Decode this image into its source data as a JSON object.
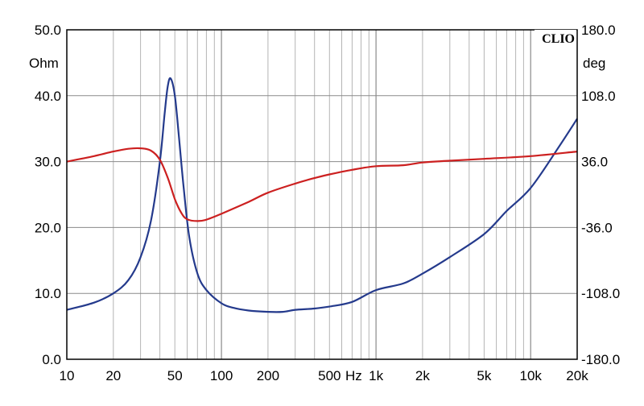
{
  "chart_data": {
    "type": "line",
    "brand": "CLIO",
    "x_axis": {
      "scale": "log",
      "range": [
        10,
        20000
      ],
      "tick_values": [
        10,
        20,
        50,
        100,
        200,
        500,
        1000,
        2000,
        5000,
        10000,
        20000
      ],
      "tick_labels": [
        "10",
        "20",
        "50",
        "100",
        "200",
        "500",
        "1k",
        "2k",
        "5k",
        "10k",
        "20k"
      ],
      "unit_label": "Hz"
    },
    "y_left": {
      "unit_label": "Ohm",
      "range": [
        0,
        50
      ],
      "tick_values": [
        0,
        10,
        20,
        30,
        40,
        50
      ],
      "tick_labels": [
        "0.0",
        "10.0",
        "20.0",
        "30.0",
        "40.0",
        "50.0"
      ]
    },
    "y_right": {
      "unit_label": "deg",
      "range": [
        -180,
        180
      ],
      "tick_values": [
        -180,
        -108,
        -36,
        36,
        108,
        180
      ],
      "tick_labels": [
        "-180.0",
        "-108.0",
        "-36.0",
        "36.0",
        "108.0",
        "180.0"
      ]
    },
    "grid": true,
    "series": [
      {
        "color": "#243a8c",
        "axis": "left",
        "x": [
          10,
          15,
          20,
          25,
          30,
          35,
          40,
          43,
          45,
          47,
          50,
          53,
          57,
          62,
          70,
          80,
          100,
          120,
          150,
          200,
          250,
          300,
          400,
          500,
          700,
          1000,
          1500,
          2000,
          3000,
          5000,
          7000,
          10000,
          15000,
          20000
        ],
        "values": [
          7.5,
          8.6,
          10.0,
          12.0,
          15.5,
          21.0,
          30.0,
          37.5,
          41.5,
          42.6,
          40.0,
          34.0,
          26.0,
          18.5,
          13.0,
          10.5,
          8.5,
          7.8,
          7.4,
          7.2,
          7.2,
          7.5,
          7.7,
          8.0,
          8.7,
          10.5,
          11.5,
          13.0,
          15.5,
          19.0,
          22.5,
          26.0,
          32.0,
          36.5
        ]
      },
      {
        "color": "#cc2020",
        "axis": "right",
        "x": [
          10,
          15,
          20,
          25,
          30,
          35,
          40,
          45,
          50,
          55,
          60,
          70,
          80,
          100,
          150,
          200,
          300,
          400,
          500,
          700,
          1000,
          1500,
          2000,
          3000,
          5000,
          10000,
          20000
        ],
        "values": [
          36.0,
          42.0,
          47.0,
          50.0,
          50.5,
          48.0,
          38.0,
          18.0,
          -5.0,
          -20.0,
          -27.0,
          -29.0,
          -27.5,
          -21.0,
          -8.0,
          2.0,
          12.0,
          18.0,
          22.0,
          27.0,
          31.0,
          32.0,
          35.0,
          37.0,
          39.0,
          42.0,
          47.0
        ]
      }
    ]
  }
}
